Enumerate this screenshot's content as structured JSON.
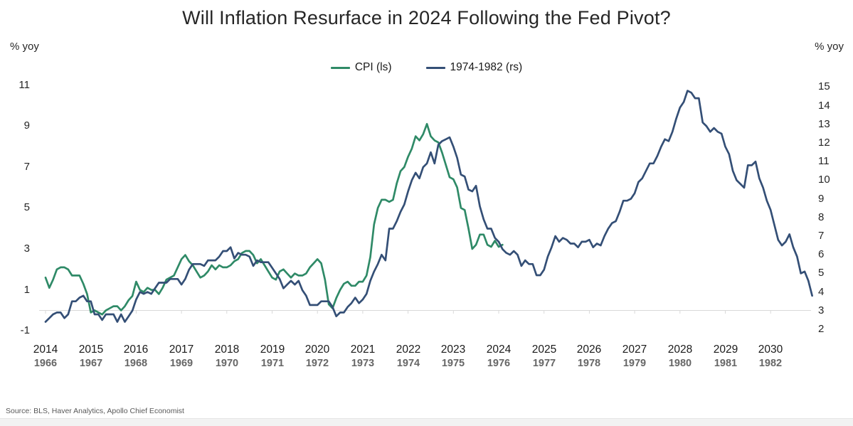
{
  "chart_data": {
    "type": "line",
    "title": "Will Inflation Resurface in 2024 Following the Fed Pivot?",
    "source": "Source: BLS, Haver Analytics, Apollo Chief Economist",
    "left_axis": {
      "unit": "% yoy",
      "ticks": [
        11,
        9,
        7,
        5,
        3,
        1,
        -1
      ],
      "range": [
        -1,
        11
      ]
    },
    "right_axis": {
      "unit": "% yoy",
      "ticks": [
        15,
        14,
        13,
        12,
        11,
        10,
        9,
        8,
        7,
        6,
        5,
        4,
        3,
        2
      ],
      "range": [
        2,
        15
      ]
    },
    "x_axis": {
      "primary_years": [
        "2014",
        "2015",
        "2016",
        "2017",
        "2018",
        "2019",
        "2020",
        "2021",
        "2022",
        "2023",
        "2024",
        "2025",
        "2026",
        "2027",
        "2028",
        "2029",
        "2030"
      ],
      "secondary_years": [
        "1966",
        "1967",
        "1968",
        "1969",
        "1970",
        "1971",
        "1972",
        "1973",
        "1974",
        "1975",
        "1976",
        "1977",
        "1978",
        "1979",
        "1980",
        "1981",
        "1982"
      ]
    },
    "legend": [
      {
        "label": "CPI (ls)",
        "color": "#2f8a67"
      },
      {
        "label": "1974-1982 (rs)",
        "color": "#344f76"
      }
    ],
    "grid": {
      "zero_line": true,
      "line_color": "#d9d9d9"
    },
    "series": [
      {
        "name": "CPI (ls)",
        "axis": "left",
        "color": "#2f8a67",
        "frequency": "monthly",
        "start_label": "2014",
        "values": [
          1.6,
          1.1,
          1.5,
          2.0,
          2.1,
          2.1,
          2.0,
          1.7,
          1.7,
          1.7,
          1.3,
          0.8,
          -0.1,
          0.0,
          -0.1,
          -0.2,
          0.0,
          0.1,
          0.2,
          0.2,
          0.0,
          0.2,
          0.5,
          0.7,
          1.4,
          1.0,
          0.9,
          1.1,
          1.0,
          1.0,
          0.8,
          1.1,
          1.5,
          1.6,
          1.7,
          2.1,
          2.5,
          2.7,
          2.4,
          2.2,
          1.9,
          1.6,
          1.7,
          1.9,
          2.2,
          2.0,
          2.2,
          2.1,
          2.1,
          2.2,
          2.4,
          2.5,
          2.8,
          2.9,
          2.9,
          2.7,
          2.3,
          2.5,
          2.2,
          1.9,
          1.6,
          1.5,
          1.9,
          2.0,
          1.8,
          1.6,
          1.8,
          1.7,
          1.7,
          1.8,
          2.1,
          2.3,
          2.5,
          2.3,
          1.5,
          0.3,
          0.1,
          0.6,
          1.0,
          1.3,
          1.4,
          1.2,
          1.2,
          1.4,
          1.4,
          1.7,
          2.6,
          4.2,
          5.0,
          5.4,
          5.4,
          5.3,
          5.4,
          6.2,
          6.8,
          7.0,
          7.5,
          7.9,
          8.5,
          8.3,
          8.6,
          9.1,
          8.5,
          8.3,
          8.2,
          7.7,
          7.1,
          6.5,
          6.4,
          6.0,
          5.0,
          4.9,
          4.0,
          3.0,
          3.2,
          3.7,
          3.7,
          3.2,
          3.1,
          3.4,
          3.1,
          3.2
        ]
      },
      {
        "name": "1974-1982 (rs)",
        "axis": "right",
        "color": "#344f76",
        "frequency": "monthly",
        "start_label": "1966",
        "values": [
          2.4,
          2.6,
          2.8,
          2.9,
          2.9,
          2.6,
          2.8,
          3.5,
          3.5,
          3.7,
          3.8,
          3.5,
          3.5,
          2.8,
          2.8,
          2.5,
          2.8,
          2.8,
          2.8,
          2.4,
          2.8,
          2.4,
          2.7,
          3.0,
          3.6,
          4.0,
          3.9,
          4.0,
          3.9,
          4.2,
          4.5,
          4.5,
          4.5,
          4.7,
          4.7,
          4.7,
          4.4,
          4.7,
          5.2,
          5.5,
          5.5,
          5.5,
          5.4,
          5.7,
          5.7,
          5.7,
          5.9,
          6.2,
          6.2,
          6.4,
          5.8,
          6.1,
          6.0,
          6.0,
          5.9,
          5.4,
          5.7,
          5.6,
          5.6,
          5.6,
          5.3,
          5.0,
          4.7,
          4.2,
          4.4,
          4.6,
          4.4,
          4.6,
          4.1,
          3.8,
          3.3,
          3.3,
          3.3,
          3.5,
          3.5,
          3.5,
          3.2,
          2.7,
          2.9,
          2.9,
          3.2,
          3.4,
          3.7,
          3.4,
          3.6,
          3.9,
          4.6,
          5.1,
          5.5,
          6.0,
          5.7,
          7.4,
          7.4,
          7.8,
          8.3,
          8.7,
          9.4,
          10.0,
          10.4,
          10.1,
          10.7,
          10.9,
          11.5,
          10.9,
          11.9,
          12.1,
          12.2,
          12.3,
          11.8,
          11.2,
          10.3,
          10.2,
          9.5,
          9.4,
          9.7,
          8.6,
          7.9,
          7.4,
          7.4,
          6.9,
          6.7,
          6.3,
          6.1,
          6.0,
          6.2,
          6.0,
          5.4,
          5.7,
          5.5,
          5.5,
          4.9,
          4.9,
          5.2,
          5.9,
          6.4,
          7.0,
          6.7,
          6.9,
          6.8,
          6.6,
          6.6,
          6.4,
          6.7,
          6.7,
          6.8,
          6.4,
          6.6,
          6.5,
          7.0,
          7.4,
          7.7,
          7.8,
          8.3,
          8.9,
          8.9,
          9.0,
          9.3,
          9.9,
          10.1,
          10.5,
          10.9,
          10.9,
          11.3,
          11.8,
          12.2,
          12.1,
          12.6,
          13.3,
          13.9,
          14.2,
          14.8,
          14.7,
          14.4,
          14.4,
          13.1,
          12.9,
          12.6,
          12.8,
          12.6,
          12.5,
          11.8,
          11.4,
          10.5,
          10.0,
          9.8,
          9.6,
          10.8,
          10.8,
          11.0,
          10.1,
          9.6,
          8.9,
          8.4,
          7.6,
          6.8,
          6.5,
          6.7,
          7.1,
          6.4,
          5.9,
          5.0,
          5.1,
          4.6,
          3.8
        ]
      }
    ]
  }
}
